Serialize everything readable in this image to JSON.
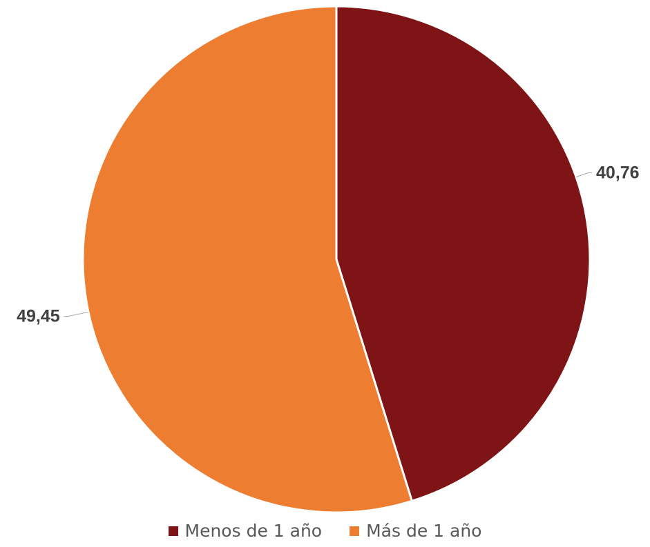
{
  "chart_data": {
    "type": "pie",
    "categories": [
      "Menos de 1 año",
      "Más de 1 año"
    ],
    "values": [
      40.76,
      49.45
    ],
    "data_labels": [
      "40,76",
      "49,45"
    ],
    "colors": [
      "#7F1416",
      "#ED7D31"
    ],
    "start_angle": "12 o'clock",
    "direction": "clockwise",
    "legend_position": "bottom"
  },
  "legend": [
    {
      "label": "Menos de 1 año",
      "color": "#7F1416"
    },
    {
      "label": "Más de 1 año",
      "color": "#ED7D31"
    }
  ]
}
